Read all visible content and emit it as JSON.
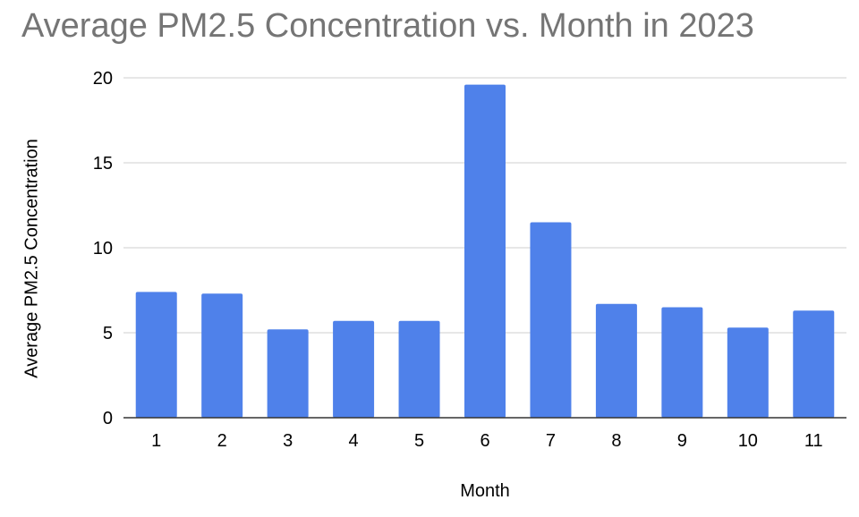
{
  "chart_data": {
    "type": "bar",
    "title": "Average PM2.5 Concentration vs. Month in 2023",
    "xlabel": "Month",
    "ylabel": "Average PM2.5 Concentration",
    "categories": [
      "1",
      "2",
      "3",
      "4",
      "5",
      "6",
      "7",
      "8",
      "9",
      "10",
      "11"
    ],
    "values": [
      7.4,
      7.3,
      5.2,
      5.7,
      5.7,
      19.6,
      11.5,
      6.7,
      6.5,
      5.3,
      6.3
    ],
    "ylim": [
      0,
      20
    ],
    "yticks": [
      "0",
      "5",
      "10",
      "15",
      "20"
    ],
    "grid": true,
    "colors": {
      "bar": "#4f81ea",
      "grid": "#cfcfcf",
      "axis": "#333333",
      "title": "#757575"
    }
  }
}
